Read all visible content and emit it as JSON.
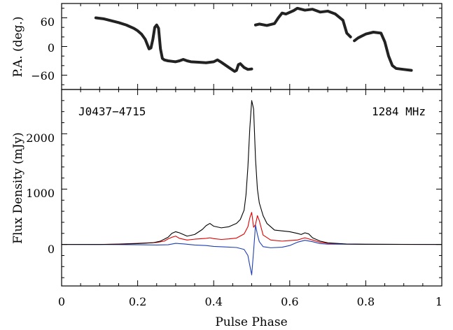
{
  "chart_data": [
    {
      "type": "scatter",
      "panel": "top",
      "ylabel": "P.A. (deg.)",
      "ylim": [
        -90,
        90
      ],
      "xlim": [
        0,
        1
      ],
      "yticks": [
        60,
        0,
        -60
      ],
      "ytick_labels": [
        "60",
        "0",
        "−60"
      ],
      "series": [
        {
          "color": "#222222",
          "x": [
            0.09,
            0.11,
            0.13,
            0.15,
            0.17,
            0.19,
            0.2,
            0.21,
            0.22,
            0.225,
            0.23,
            0.235,
            0.24,
            0.245,
            0.25,
            0.255,
            0.26,
            0.265,
            0.27,
            0.28,
            0.29,
            0.3,
            0.31,
            0.32,
            0.33,
            0.34,
            0.36,
            0.38,
            0.4,
            0.41,
            0.42,
            0.44,
            0.455,
            0.46,
            0.465,
            0.47,
            0.48,
            0.49,
            0.5
          ],
          "y": [
            60,
            58,
            54,
            50,
            45,
            38,
            33,
            26,
            15,
            5,
            -5,
            -3,
            15,
            40,
            45,
            38,
            -5,
            -25,
            -28,
            -30,
            -31,
            -32,
            -30,
            -27,
            -30,
            -32,
            -33,
            -34,
            -32,
            -28,
            -33,
            -44,
            -52,
            -50,
            -38,
            -36,
            -44,
            -48,
            -47
          ]
        },
        {
          "color": "#222222",
          "x": [
            0.51,
            0.52,
            0.54,
            0.56,
            0.57,
            0.58,
            0.59,
            0.61,
            0.62,
            0.64,
            0.66,
            0.68,
            0.7,
            0.72,
            0.74,
            0.75,
            0.76
          ],
          "y": [
            45,
            47,
            44,
            48,
            60,
            70,
            68,
            75,
            80,
            76,
            78,
            72,
            74,
            68,
            55,
            28,
            20
          ]
        },
        {
          "color": "#222222",
          "x": [
            0.77,
            0.78,
            0.79,
            0.8,
            0.82,
            0.84,
            0.85,
            0.86,
            0.87,
            0.88,
            0.9,
            0.92
          ],
          "y": [
            12,
            18,
            22,
            26,
            30,
            28,
            10,
            -20,
            -40,
            -46,
            -48,
            -50
          ]
        }
      ]
    },
    {
      "type": "line",
      "panel": "bottom",
      "xlabel": "Pulse Phase",
      "ylabel": "Flux Density (mJy)",
      "xlim": [
        0,
        1
      ],
      "ylim": [
        -750,
        2800
      ],
      "xticks": [
        0,
        0.2,
        0.4,
        0.6,
        0.8,
        1
      ],
      "xtick_labels": [
        "0",
        "0.2",
        "0.4",
        "0.6",
        "0.8",
        "1"
      ],
      "yticks": [
        0,
        1000,
        2000
      ],
      "ytick_labels": [
        "0",
        "1000",
        "2000"
      ],
      "annotations": [
        "J0437−4715",
        "1284 MHz"
      ],
      "series": [
        {
          "color": "#000000",
          "x": [
            0,
            0.1,
            0.15,
            0.2,
            0.24,
            0.26,
            0.28,
            0.29,
            0.3,
            0.31,
            0.33,
            0.35,
            0.37,
            0.38,
            0.39,
            0.4,
            0.42,
            0.44,
            0.46,
            0.47,
            0.48,
            0.485,
            0.49,
            0.495,
            0.5,
            0.505,
            0.51,
            0.515,
            0.52,
            0.53,
            0.54,
            0.56,
            0.6,
            0.62,
            0.63,
            0.64,
            0.65,
            0.66,
            0.67,
            0.68,
            0.7,
            0.75,
            0.8,
            1
          ],
          "y": [
            0,
            0,
            5,
            15,
            30,
            60,
            130,
            200,
            230,
            210,
            150,
            180,
            270,
            340,
            380,
            330,
            300,
            320,
            380,
            450,
            620,
            900,
            1400,
            2100,
            2600,
            2450,
            1550,
            1000,
            750,
            520,
            380,
            260,
            230,
            200,
            180,
            210,
            190,
            120,
            90,
            60,
            30,
            8,
            3,
            0
          ]
        },
        {
          "color": "#e00000",
          "x": [
            0,
            0.1,
            0.15,
            0.2,
            0.25,
            0.27,
            0.28,
            0.29,
            0.3,
            0.31,
            0.33,
            0.35,
            0.38,
            0.39,
            0.4,
            0.42,
            0.44,
            0.46,
            0.48,
            0.49,
            0.495,
            0.5,
            0.505,
            0.51,
            0.515,
            0.52,
            0.53,
            0.55,
            0.58,
            0.6,
            0.62,
            0.64,
            0.66,
            0.68,
            0.7,
            0.75,
            0.8,
            1
          ],
          "y": [
            0,
            0,
            8,
            20,
            35,
            60,
            100,
            130,
            150,
            110,
            80,
            95,
            110,
            120,
            105,
            90,
            100,
            115,
            190,
            320,
            480,
            580,
            310,
            360,
            520,
            430,
            170,
            80,
            60,
            70,
            80,
            120,
            80,
            40,
            20,
            5,
            2,
            0
          ]
        },
        {
          "color": "#1e3fb0",
          "x": [
            0,
            0.15,
            0.2,
            0.25,
            0.28,
            0.3,
            0.32,
            0.35,
            0.38,
            0.4,
            0.43,
            0.46,
            0.48,
            0.49,
            0.495,
            0.5,
            0.505,
            0.51,
            0.515,
            0.52,
            0.53,
            0.55,
            0.58,
            0.6,
            0.62,
            0.64,
            0.66,
            0.68,
            0.7,
            1
          ],
          "y": [
            0,
            -2,
            -5,
            -10,
            -5,
            20,
            10,
            -10,
            -20,
            -35,
            -45,
            -55,
            -90,
            -200,
            -380,
            -550,
            -120,
            350,
            180,
            50,
            -40,
            -60,
            -50,
            -20,
            40,
            75,
            50,
            15,
            5,
            0
          ]
        }
      ]
    }
  ]
}
